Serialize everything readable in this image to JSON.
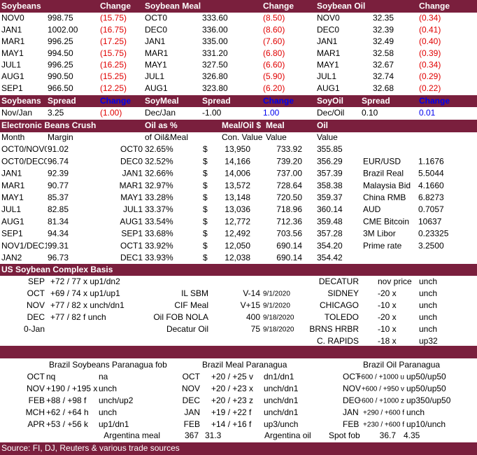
{
  "futures": {
    "header": [
      "Soybeans",
      null,
      "Change",
      "Soybean Meal",
      null,
      "Change",
      "Soybean Oil",
      null,
      "Change"
    ],
    "rows": [
      [
        "NOV0",
        "998.75",
        "(15.75)",
        "OCT0",
        "333.60",
        "(8.50)",
        "NOV0",
        "32.35",
        "(0.34)"
      ],
      [
        "JAN1",
        "1002.00",
        "(16.75)",
        "DEC0",
        "336.00",
        "(8.60)",
        "DEC0",
        "32.39",
        "(0.41)"
      ],
      [
        "MAR1",
        "996.25",
        "(17.25)",
        "JAN1",
        "335.00",
        "(7.60)",
        "JAN1",
        "32.49",
        "(0.40)"
      ],
      [
        "MAY1",
        "994.50",
        "(15.75)",
        "MAR1",
        "331.20",
        "(6.80)",
        "MAR1",
        "32.58",
        "(0.39)"
      ],
      [
        "JUL1",
        "996.25",
        "(16.25)",
        "MAY1",
        "327.50",
        "(6.60)",
        "MAY1",
        "32.67",
        "(0.34)"
      ],
      [
        "AUG1",
        "990.50",
        "(15.25)",
        "JUL1",
        "326.80",
        "(5.90)",
        "JUL1",
        "32.74",
        "(0.29)"
      ],
      [
        "SEP1",
        "966.50",
        "(12.25)",
        "AUG1",
        "323.80",
        "(6.20)",
        "AUG1",
        "32.68",
        "(0.22)"
      ]
    ]
  },
  "spreads": {
    "header": [
      "Soybeans",
      "Spread",
      "Change",
      "SoyMeal",
      "Spread",
      "Change",
      "SoyOil",
      "Spread",
      "Change"
    ],
    "rows": [
      [
        "Nov/Jan",
        "3.25",
        "(1.00)",
        "Dec/Jan",
        "-1.00",
        "1.00",
        "Dec/Oil",
        "0.10",
        "0.01"
      ]
    ]
  },
  "crush": {
    "title": "Electronic Beans Crush",
    "header": [
      "Oil as %",
      "Meal/Oil $",
      "Meal",
      "Oil"
    ],
    "subheader": [
      "Month",
      "Margin",
      "of Oil&Meal",
      "Con. Value",
      "Value",
      "Value"
    ],
    "rows": [
      [
        "OCT0/NOV0",
        "91.02",
        "OCT0",
        "32.65%",
        "$",
        "13,950",
        "733.92",
        "355.85",
        null,
        null
      ],
      [
        "OCT0/DEC0",
        "96.74",
        "DEC0",
        "32.52%",
        "$",
        "14,166",
        "739.20",
        "356.29",
        "EUR/USD",
        "1.1676"
      ],
      [
        "JAN1",
        "92.39",
        "JAN1",
        "32.66%",
        "$",
        "14,006",
        "737.00",
        "357.39",
        "Brazil Real",
        "5.5044"
      ],
      [
        "MAR1",
        "90.77",
        "MAR1",
        "32.97%",
        "$",
        "13,572",
        "728.64",
        "358.38",
        "Malaysia Bid",
        "4.1660"
      ],
      [
        "MAY1",
        "85.37",
        "MAY1",
        "33.28%",
        "$",
        "13,148",
        "720.50",
        "359.37",
        "China RMB",
        "6.8273"
      ],
      [
        "JUL1",
        "82.85",
        "JUL1",
        "33.37%",
        "$",
        "13,036",
        "718.96",
        "360.14",
        "AUD",
        "0.7057"
      ],
      [
        "AUG1",
        "81.34",
        "AUG1",
        "33.54%",
        "$",
        "12,772",
        "712.36",
        "359.48",
        "CME Bitcoin",
        "10637"
      ],
      [
        "SEP1",
        "94.34",
        "SEP1",
        "33.68%",
        "$",
        "12,492",
        "703.56",
        "357.28",
        "3M Libor",
        "0.23325"
      ],
      [
        "NOV1/DEC1",
        "99.31",
        "OCT1",
        "33.92%",
        "$",
        "12,050",
        "690.14",
        "354.20",
        "Prime rate",
        "3.2500"
      ],
      [
        "JAN2",
        "96.73",
        "DEC1",
        "33.93%",
        "$",
        "12,038",
        "690.14",
        "354.42",
        null,
        null
      ]
    ]
  },
  "basis": {
    "title": "US Soybean Complex Basis",
    "rows": [
      [
        "SEP",
        "+72 / 77 x up1/dn2",
        null,
        null,
        null,
        "DECATUR",
        "nov price",
        "unch"
      ],
      [
        "OCT",
        "+69 / 74 x up1/up1",
        "IL SBM",
        "V-14",
        "9/1/2020",
        "SIDNEY",
        "-20 x",
        "unch"
      ],
      [
        "NOV",
        "+77 / 82 x unch/dn1",
        "CIF Meal",
        "V+15",
        "9/1/2020",
        "CHICAGO",
        "-10 x",
        "unch"
      ],
      [
        "DEC",
        "+77 / 82 f unch",
        "Oil FOB NOLA",
        "400",
        "9/18/2020",
        "TOLEDO",
        "-20 x",
        "unch"
      ],
      [
        "0-Jan",
        null,
        "Decatur Oil",
        "75",
        "9/18/2020",
        "BRNS HRBR",
        "-10 x",
        "unch"
      ],
      [
        null,
        null,
        null,
        null,
        null,
        "C. RAPIDS",
        "-18 x",
        "up32"
      ]
    ]
  },
  "brazil": {
    "header": [
      "Brazil Soybeans Paranagua fob",
      "Brazil Meal Paranagua",
      "Brazil Oil Paranagua"
    ],
    "rows": [
      [
        "OCT",
        "nq",
        "na",
        "OCT",
        "+20 / +25 v",
        "dn1/dn1",
        "OCT",
        "+600 / +1000 u",
        "up50/up50"
      ],
      [
        "NOV",
        "+190 / +195 x",
        "unch",
        "NOV",
        "+20 / +23 x",
        "unch/dn1",
        "NOV",
        "+600 / +950 v",
        "up50/up50"
      ],
      [
        "FEB",
        "+88 / +98 f",
        "unch/up2",
        "DEC",
        "+20 / +23 z",
        "unch/dn1",
        "DEC",
        "+600 / +1000 z",
        "up350/up50"
      ],
      [
        "MCH",
        "+62 / +64 h",
        "unch",
        "JAN",
        "+19 / +22 f",
        "unch/dn1",
        "JAN",
        "+290 / +600 f",
        "unch"
      ],
      [
        "APR",
        "+53 / +56 k",
        "up1/dn1",
        "FEB",
        "+14 / +16 f",
        "up3/unch",
        "FEB",
        "+230 / +600 f",
        "up10/unch"
      ]
    ],
    "argentina": [
      "Argentina meal",
      "367",
      "31.3",
      "Argentina oil",
      "Spot fob",
      "36.7",
      "4.35"
    ]
  },
  "footer": {
    "source": "Source: FI, DJ, Reuters & various trade sources"
  }
}
